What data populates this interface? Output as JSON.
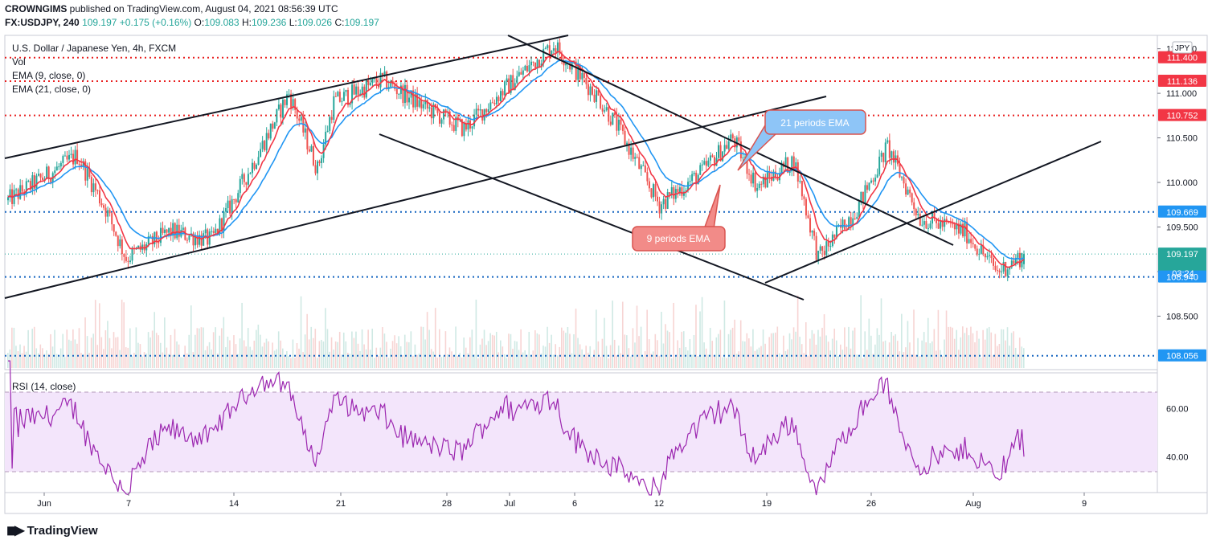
{
  "header": {
    "publisher": "CROWNGIMS",
    "published_text": "published on TradingView.com, August 04, 2021 08:56:39 UTC",
    "symbol": "FX:USDJPY, 240",
    "last": "109.197",
    "change": "+0.175 (+0.16%)",
    "o_label": "O:",
    "o": "109.083",
    "h_label": "H:",
    "h": "109.236",
    "l_label": "L:",
    "l": "109.026",
    "c_label": "C:",
    "c": "109.197"
  },
  "legend": {
    "title": "U.S. Dollar / Japanese Yen, 4h, FXCM",
    "vol": "Vol",
    "ema9": "EMA (9, close, 0)",
    "ema21": "EMA (21, close, 0)",
    "rsi": "RSI (14, close)"
  },
  "currency_badge": "JPY",
  "countdown": "03:24",
  "annotations": {
    "ema21_callout": "21 periods EMA",
    "ema9_callout": "9 periods EMA"
  },
  "brand": "TradingView",
  "colors": {
    "up": "#26a69a",
    "down": "#ef5350",
    "ema9": "#f23645",
    "ema21": "#2196f3",
    "rsi": "#9c27b0",
    "rsi_band": "#f3e5fb",
    "resistance": "#e91e1e",
    "support": "#1565c0"
  },
  "chart_data": [
    {
      "type": "candlestick",
      "title": "U.S. Dollar / Japanese Yen, 4h, FXCM",
      "ylim": [
        107.9,
        111.65
      ],
      "y_ticks": [
        "108.500",
        "109.000",
        "109.500",
        "110.000",
        "110.500",
        "111.000",
        "111.500"
      ],
      "x_ticks": [
        "Jun",
        "7",
        "14",
        "21",
        "28",
        "Jul",
        "6",
        "12",
        "19",
        "26",
        "Aug",
        "9"
      ],
      "anchors_x": [
        0,
        34,
        48,
        58,
        80,
        100,
        120,
        138,
        152,
        160,
        184,
        204,
        224,
        244,
        268,
        290,
        300,
        320,
        340,
        356,
        368,
        386,
        398,
        418,
        432,
        448,
        470
      ],
      "anchors_price": [
        109.8,
        110.3,
        109.7,
        109.15,
        109.45,
        109.35,
        110.2,
        111.0,
        110.15,
        110.9,
        111.15,
        110.85,
        110.6,
        111.05,
        111.55,
        110.95,
        110.6,
        109.75,
        110.1,
        110.5,
        109.95,
        110.25,
        109.15,
        109.75,
        110.4,
        109.6,
        109.45
      ],
      "anchors_tail_x": [
        470,
        486,
        500
      ],
      "anchors_tail_price": [
        109.45,
        109.0,
        109.2
      ],
      "levels": [
        {
          "label": "111.400",
          "value": 111.4,
          "style": "resistance"
        },
        {
          "label": "111.136",
          "value": 111.136,
          "style": "resistance"
        },
        {
          "label": "110.752",
          "value": 110.752,
          "style": "resistance"
        },
        {
          "label": "109.669",
          "value": 109.669,
          "style": "support"
        },
        {
          "label": "109.197",
          "value": 109.197,
          "style": "last"
        },
        {
          "label": "108.940",
          "value": 108.94,
          "style": "support"
        },
        {
          "label": "108.056",
          "value": 108.056,
          "style": "support"
        }
      ]
    },
    {
      "type": "line",
      "title": "RSI (14, close)",
      "ylim": [
        25,
        75
      ],
      "y_ticks": [
        "40.00",
        "60.00"
      ],
      "band": [
        30,
        70
      ]
    }
  ]
}
